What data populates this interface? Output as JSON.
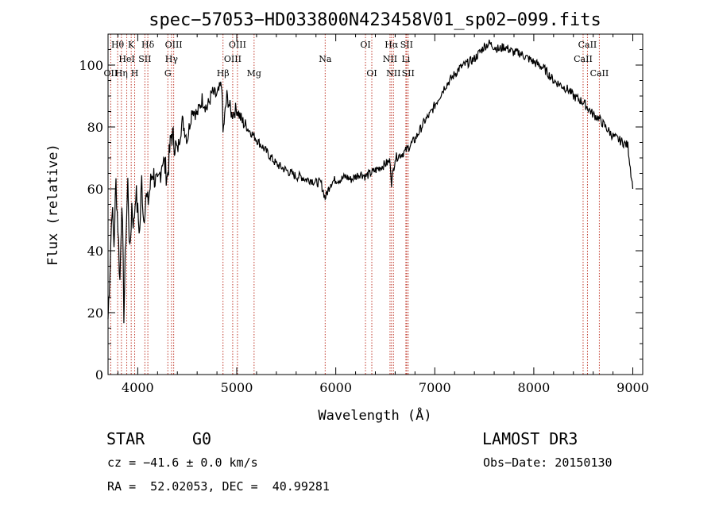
{
  "chart_data": {
    "type": "line",
    "title": "spec−57053−HD033800N423458V01_sp02−099.fits",
    "xlabel": "Wavelength (Å)",
    "ylabel": "Flux (relative)",
    "xlim": [
      3700,
      9100
    ],
    "ylim": [
      0,
      110
    ],
    "x_ticks": [
      4000,
      5000,
      6000,
      7000,
      8000,
      9000
    ],
    "y_ticks": [
      0,
      20,
      40,
      60,
      80,
      100
    ],
    "x_tick_labels": [
      "4000",
      "5000",
      "6000",
      "7000",
      "8000",
      "9000"
    ],
    "y_tick_labels": [
      "0",
      "20",
      "40",
      "60",
      "80",
      "100"
    ],
    "grid": false,
    "series": [
      {
        "name": "spectrum",
        "x": [
          3700,
          3720,
          3740,
          3760,
          3780,
          3800,
          3820,
          3840,
          3860,
          3880,
          3900,
          3920,
          3940,
          3960,
          3980,
          4000,
          4020,
          4040,
          4060,
          4080,
          4100,
          4150,
          4200,
          4250,
          4300,
          4340,
          4400,
          4450,
          4500,
          4550,
          4600,
          4650,
          4700,
          4750,
          4800,
          4850,
          4861,
          4900,
          4950,
          5000,
          5050,
          5100,
          5150,
          5200,
          5250,
          5300,
          5350,
          5400,
          5450,
          5500,
          5550,
          5600,
          5650,
          5700,
          5750,
          5800,
          5850,
          5893,
          5950,
          6000,
          6050,
          6100,
          6150,
          6200,
          6250,
          6300,
          6350,
          6400,
          6450,
          6500,
          6550,
          6563,
          6600,
          6650,
          6700,
          6750,
          6800,
          6850,
          6900,
          6950,
          7000,
          7050,
          7100,
          7150,
          7200,
          7250,
          7300,
          7350,
          7400,
          7450,
          7500,
          7550,
          7600,
          7650,
          7700,
          7750,
          7800,
          7850,
          7900,
          7950,
          8000,
          8050,
          8100,
          8150,
          8200,
          8250,
          8300,
          8350,
          8400,
          8450,
          8500,
          8550,
          8600,
          8650,
          8700,
          8750,
          8800,
          8850,
          8900,
          8950,
          9000
        ],
        "values": [
          18,
          35,
          55,
          42,
          62,
          48,
          30,
          58,
          20,
          45,
          62,
          38,
          55,
          48,
          60,
          52,
          46,
          63,
          50,
          58,
          55,
          66,
          60,
          70,
          64,
          78,
          72,
          82,
          76,
          86,
          84,
          89,
          86,
          91,
          90,
          94,
          78,
          90,
          84,
          86,
          82,
          80,
          78,
          76,
          74,
          72,
          70,
          68,
          67,
          66,
          65,
          64,
          64,
          63,
          63,
          62,
          62,
          57,
          62,
          63,
          63,
          64,
          63,
          64,
          65,
          64,
          65,
          66,
          67,
          68,
          69,
          62,
          70,
          71,
          72,
          74,
          76,
          79,
          82,
          84,
          87,
          90,
          93,
          95,
          97,
          99,
          100,
          101,
          102,
          104,
          106,
          107,
          106,
          105,
          106,
          105,
          104,
          104,
          103,
          102,
          101,
          100,
          99,
          97,
          95,
          94,
          93,
          92,
          90,
          89,
          88,
          86,
          84,
          83,
          81,
          79,
          77,
          76,
          75,
          74,
          60
        ]
      }
    ],
    "line_markers": [
      {
        "label": "Hθ",
        "x": 3797,
        "row": 0
      },
      {
        "label": "OII",
        "x": 3727,
        "row": 2
      },
      {
        "label": "Hη",
        "x": 3835,
        "row": 2
      },
      {
        "label": "HeI",
        "x": 3889,
        "row": 1
      },
      {
        "label": "K",
        "x": 3934,
        "row": 0
      },
      {
        "label": "H",
        "x": 3969,
        "row": 2
      },
      {
        "label": "SII",
        "x": 4072,
        "row": 1
      },
      {
        "label": "Hδ",
        "x": 4102,
        "row": 0
      },
      {
        "label": "G",
        "x": 4304,
        "row": 2
      },
      {
        "label": "Hγ",
        "x": 4341,
        "row": 1
      },
      {
        "label": "OIII",
        "x": 4363,
        "row": 0
      },
      {
        "label": "Hβ",
        "x": 4861,
        "row": 2
      },
      {
        "label": "OIII",
        "x": 4959,
        "row": 1
      },
      {
        "label": "OIII",
        "x": 5007,
        "row": 0
      },
      {
        "label": "Mg",
        "x": 5175,
        "row": 2
      },
      {
        "label": "Na",
        "x": 5893,
        "row": 1
      },
      {
        "label": "OI",
        "x": 6300,
        "row": 0
      },
      {
        "label": "OI",
        "x": 6364,
        "row": 2
      },
      {
        "label": "NII",
        "x": 6548,
        "row": 1
      },
      {
        "label": "Hα",
        "x": 6563,
        "row": 0
      },
      {
        "label": "NII",
        "x": 6583,
        "row": 2
      },
      {
        "label": "Li",
        "x": 6708,
        "row": 1
      },
      {
        "label": "SII",
        "x": 6716,
        "row": 0
      },
      {
        "label": "SII",
        "x": 6731,
        "row": 2
      },
      {
        "label": "CaII",
        "x": 8498,
        "row": 1
      },
      {
        "label": "CaII",
        "x": 8542,
        "row": 0
      },
      {
        "label": "CaII",
        "x": 8662,
        "row": 2
      }
    ]
  },
  "footer": {
    "object_type": "STAR",
    "subclass": "G0",
    "survey": "LAMOST DR3",
    "velocity": "cz = −41.6 ± 0.0 km/s",
    "obs_date": "Obs−Date: 20150130",
    "coordinates": "RA =  52.02053, DEC =  40.99281"
  }
}
